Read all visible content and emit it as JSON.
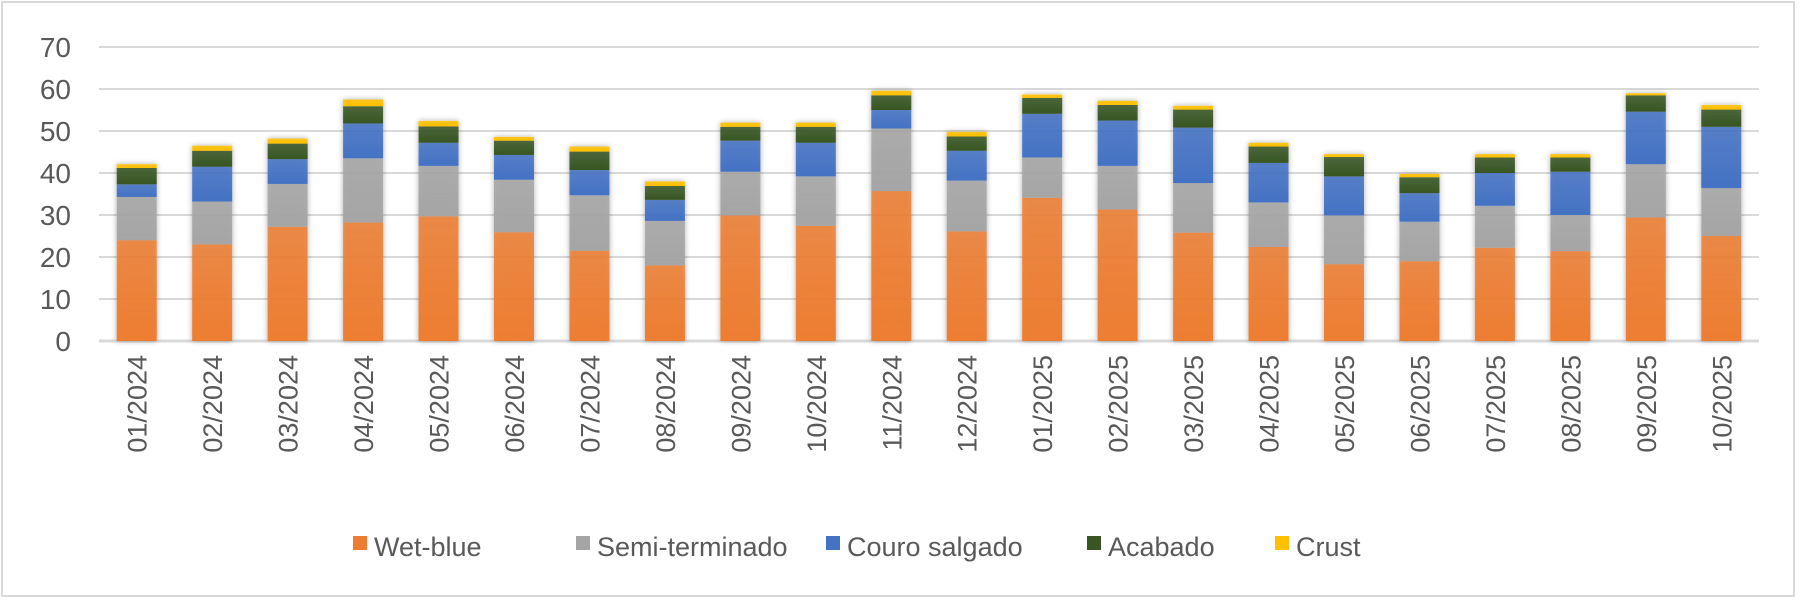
{
  "chart_data": {
    "type": "bar",
    "stacked": true,
    "title": "",
    "xlabel": "",
    "ylabel": "",
    "ylim": [
      0,
      70
    ],
    "yticks": [
      0,
      10,
      20,
      30,
      40,
      50,
      60,
      70
    ],
    "grid": true,
    "legend_position": "bottom",
    "categories": [
      "01/2024",
      "02/2024",
      "03/2024",
      "04/2024",
      "05/2024",
      "06/2024",
      "07/2024",
      "08/2024",
      "09/2024",
      "10/2024",
      "11/2024",
      "12/2024",
      "01/2025",
      "02/2025",
      "03/2025",
      "04/2025",
      "05/2025",
      "06/2025",
      "07/2025",
      "08/2025",
      "09/2025",
      "10/2025"
    ],
    "series": [
      {
        "name": "Wet-blue",
        "color": "#ED7D31",
        "values": [
          24.0,
          23.0,
          27.2,
          28.2,
          29.7,
          25.9,
          21.5,
          18.0,
          29.9,
          27.4,
          35.7,
          26.1,
          34.1,
          31.3,
          25.8,
          22.4,
          18.3,
          19.0,
          22.2,
          21.4,
          29.4,
          25.0
        ]
      },
      {
        "name": "Semi-terminado",
        "color": "#A5A5A5",
        "values": [
          10.3,
          10.2,
          10.2,
          15.3,
          12.0,
          12.5,
          13.2,
          10.6,
          10.4,
          11.8,
          14.9,
          12.1,
          9.6,
          10.4,
          11.8,
          10.6,
          11.6,
          9.4,
          10.0,
          8.6,
          12.7,
          11.4
        ]
      },
      {
        "name": "Couro salgado",
        "color": "#4472C4",
        "values": [
          3.0,
          8.3,
          5.9,
          8.3,
          5.5,
          5.9,
          6.0,
          5.0,
          7.4,
          8.0,
          4.4,
          7.1,
          10.4,
          10.8,
          13.2,
          9.4,
          9.3,
          6.8,
          7.8,
          10.3,
          12.5,
          14.6
        ]
      },
      {
        "name": "Acabado",
        "color": "#375623",
        "values": [
          3.9,
          3.8,
          3.7,
          4.1,
          3.9,
          3.4,
          4.4,
          3.3,
          3.3,
          3.8,
          3.5,
          3.4,
          3.8,
          3.7,
          4.3,
          3.9,
          4.6,
          3.8,
          3.7,
          3.4,
          3.9,
          4.1
        ]
      },
      {
        "name": "Crust",
        "color": "#FFC000",
        "values": [
          0.9,
          1.2,
          1.2,
          1.6,
          1.3,
          0.9,
          1.2,
          1.1,
          1.0,
          1.0,
          1.1,
          1.1,
          0.8,
          1.0,
          0.9,
          0.9,
          0.7,
          0.8,
          0.8,
          0.8,
          0.5,
          1.1
        ]
      }
    ]
  }
}
